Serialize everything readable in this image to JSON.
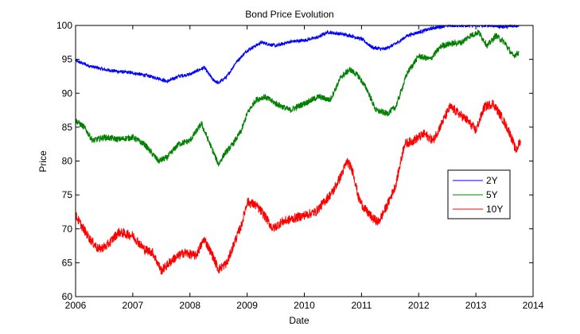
{
  "chart_data": {
    "type": "line",
    "title": "Bond Price Evolution",
    "xlabel": "Date",
    "ylabel": "Price",
    "xlim": [
      2006,
      2014
    ],
    "ylim": [
      60,
      100
    ],
    "xticks": [
      "2006",
      "2007",
      "2008",
      "2009",
      "2010",
      "2011",
      "2012",
      "2013",
      "2014"
    ],
    "yticks": [
      "60",
      "65",
      "70",
      "75",
      "80",
      "85",
      "90",
      "95",
      "100"
    ],
    "grid": false,
    "legend_position": "right",
    "series": [
      {
        "name": "2Y",
        "color": "#0000ff",
        "x": [
          2006.0,
          2006.25,
          2006.5,
          2006.75,
          2007.0,
          2007.25,
          2007.45,
          2007.6,
          2007.8,
          2008.0,
          2008.25,
          2008.4,
          2008.5,
          2008.65,
          2008.8,
          2009.0,
          2009.25,
          2009.5,
          2009.75,
          2010.0,
          2010.25,
          2010.4,
          2010.6,
          2010.8,
          2011.0,
          2011.2,
          2011.4,
          2011.6,
          2011.8,
          2012.0,
          2012.25,
          2012.5,
          2012.75,
          2013.0,
          2013.25,
          2013.5,
          2013.75
        ],
        "y": [
          94.8,
          94.0,
          93.5,
          93.2,
          93.0,
          92.6,
          92.2,
          91.7,
          92.5,
          92.8,
          93.8,
          92.0,
          91.5,
          92.5,
          94.5,
          96.3,
          97.5,
          97.0,
          97.6,
          97.8,
          98.3,
          99.0,
          98.8,
          98.5,
          98.0,
          96.7,
          96.5,
          97.3,
          98.5,
          99.0,
          99.6,
          100.0,
          100.0,
          100.0,
          100.0,
          99.8,
          100.0
        ]
      },
      {
        "name": "5Y",
        "color": "#008000",
        "x": [
          2006.0,
          2006.15,
          2006.3,
          2006.5,
          2006.75,
          2007.0,
          2007.2,
          2007.45,
          2007.6,
          2007.8,
          2008.0,
          2008.2,
          2008.35,
          2008.5,
          2008.6,
          2008.75,
          2008.9,
          2009.0,
          2009.15,
          2009.3,
          2009.5,
          2009.75,
          2010.0,
          2010.25,
          2010.45,
          2010.65,
          2010.8,
          2010.95,
          2011.1,
          2011.25,
          2011.45,
          2011.6,
          2011.8,
          2012.0,
          2012.2,
          2012.4,
          2012.55,
          2012.75,
          2012.9,
          2013.05,
          2013.2,
          2013.35,
          2013.5,
          2013.65,
          2013.75
        ],
        "y": [
          86.0,
          85.0,
          83.0,
          83.5,
          83.2,
          83.5,
          82.5,
          80.0,
          80.5,
          82.5,
          83.0,
          85.5,
          82.5,
          79.5,
          81.0,
          82.5,
          84.5,
          87.0,
          89.0,
          89.5,
          88.5,
          87.5,
          88.5,
          89.5,
          89.0,
          92.5,
          93.5,
          92.5,
          90.5,
          87.5,
          87.0,
          88.0,
          93.0,
          95.5,
          95.0,
          97.0,
          97.3,
          97.5,
          98.5,
          99.0,
          97.0,
          98.5,
          97.5,
          95.5,
          96.0
        ]
      },
      {
        "name": "10Y",
        "color": "#ff0000",
        "x": [
          2006.0,
          2006.1,
          2006.25,
          2006.4,
          2006.55,
          2006.75,
          2007.0,
          2007.2,
          2007.35,
          2007.5,
          2007.7,
          2007.9,
          2008.1,
          2008.25,
          2008.4,
          2008.5,
          2008.65,
          2008.8,
          2008.9,
          2009.0,
          2009.15,
          2009.3,
          2009.45,
          2009.6,
          2009.8,
          2010.0,
          2010.2,
          2010.35,
          2010.5,
          2010.65,
          2010.75,
          2010.85,
          2010.95,
          2011.05,
          2011.2,
          2011.3,
          2011.45,
          2011.6,
          2011.75,
          2011.9,
          2012.1,
          2012.25,
          2012.4,
          2012.55,
          2012.7,
          2012.85,
          2013.0,
          2013.15,
          2013.3,
          2013.45,
          2013.6,
          2013.7,
          2013.78
        ],
        "y": [
          72.0,
          70.5,
          68.5,
          67.0,
          67.5,
          69.5,
          69.0,
          67.0,
          66.5,
          63.8,
          65.5,
          66.5,
          66.0,
          68.5,
          66.0,
          64.0,
          65.0,
          68.5,
          70.5,
          74.0,
          73.5,
          72.0,
          70.0,
          71.0,
          71.5,
          72.0,
          72.5,
          74.0,
          75.5,
          78.0,
          80.0,
          78.5,
          74.5,
          73.0,
          71.5,
          71.0,
          73.5,
          76.5,
          82.5,
          83.0,
          84.0,
          83.0,
          85.5,
          88.0,
          87.0,
          86.0,
          84.5,
          88.0,
          88.5,
          86.5,
          84.0,
          81.5,
          83.0
        ]
      }
    ]
  }
}
